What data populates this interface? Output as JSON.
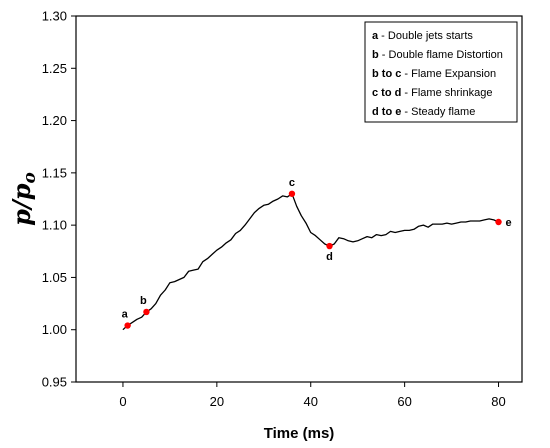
{
  "chart_data": {
    "type": "line",
    "xlabel": "Time (ms)",
    "ylabel_base": "p/p",
    "ylabel_sub": "o",
    "xlim": [
      -10,
      85
    ],
    "ylim": [
      0.95,
      1.3
    ],
    "x_ticks": [
      0,
      20,
      40,
      60,
      80
    ],
    "x_tick_labels": [
      "0",
      "20",
      "40",
      "60",
      "80"
    ],
    "y_ticks": [
      0.95,
      1.0,
      1.05,
      1.1,
      1.15,
      1.2,
      1.25,
      1.3
    ],
    "y_tick_labels": [
      "0.95",
      "1.00",
      "1.05",
      "1.10",
      "1.15",
      "1.20",
      "1.25",
      "1.30"
    ],
    "line_color": "#000000",
    "marker_color": "#ff0000",
    "grid": false,
    "series": [
      {
        "x": [
          0,
          1,
          2,
          3,
          4,
          5,
          6,
          7,
          8,
          9,
          10,
          11,
          12,
          13,
          14,
          15,
          16,
          17,
          18,
          19,
          20,
          21,
          22,
          23,
          24,
          25,
          26,
          27,
          28,
          29,
          30,
          31,
          32,
          33,
          34,
          35,
          36,
          37,
          38,
          39,
          40,
          41,
          42,
          43,
          44,
          45,
          46,
          47,
          48,
          49,
          50,
          51,
          52,
          53,
          54,
          55,
          56,
          57,
          58,
          59,
          60,
          61,
          62,
          63,
          64,
          65,
          66,
          67,
          68,
          69,
          70,
          71,
          72,
          73,
          74,
          75,
          76,
          77,
          78,
          79,
          80
        ],
        "y": [
          1.0,
          1.004,
          1.007,
          1.01,
          1.012,
          1.017,
          1.02,
          1.025,
          1.033,
          1.038,
          1.045,
          1.046,
          1.048,
          1.05,
          1.056,
          1.057,
          1.058,
          1.065,
          1.068,
          1.072,
          1.076,
          1.079,
          1.083,
          1.086,
          1.092,
          1.095,
          1.1,
          1.106,
          1.112,
          1.116,
          1.119,
          1.12,
          1.123,
          1.125,
          1.128,
          1.127,
          1.13,
          1.118,
          1.109,
          1.102,
          1.093,
          1.09,
          1.086,
          1.082,
          1.08,
          1.082,
          1.088,
          1.087,
          1.085,
          1.084,
          1.085,
          1.087,
          1.089,
          1.088,
          1.091,
          1.09,
          1.091,
          1.094,
          1.093,
          1.094,
          1.095,
          1.095,
          1.096,
          1.099,
          1.1,
          1.098,
          1.101,
          1.101,
          1.101,
          1.102,
          1.101,
          1.102,
          1.103,
          1.103,
          1.104,
          1.104,
          1.104,
          1.105,
          1.106,
          1.105,
          1.103
        ]
      }
    ],
    "points": [
      {
        "label": "a",
        "x": 1,
        "y": 1.004
      },
      {
        "label": "b",
        "x": 5,
        "y": 1.017
      },
      {
        "label": "c",
        "x": 36,
        "y": 1.13
      },
      {
        "label": "d",
        "x": 44,
        "y": 1.08
      },
      {
        "label": "e",
        "x": 80,
        "y": 1.103
      }
    ],
    "legend": {
      "placement": "top-right",
      "entries": [
        {
          "key": "a",
          "text": " - Double jets starts"
        },
        {
          "key": "b",
          "text": " - Double flame Distortion"
        },
        {
          "key": "b to c",
          "text": " - Flame Expansion"
        },
        {
          "key": "c to d",
          "text": " - Flame shrinkage"
        },
        {
          "key": "d to e",
          "text": " -  Steady flame"
        }
      ]
    }
  }
}
